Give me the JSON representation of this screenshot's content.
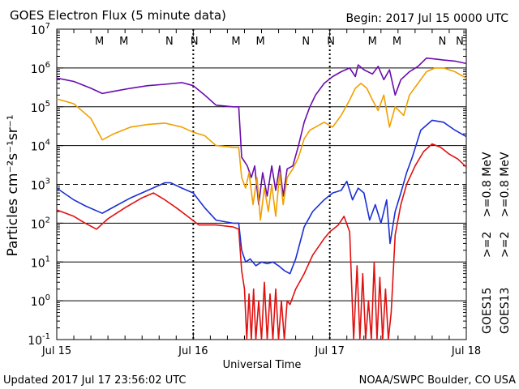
{
  "header": {
    "title": "GOES Electron Flux (5 minute data)",
    "begin": "Begin: 2017 Jul 15 0000 UTC"
  },
  "footer": {
    "updated": "Updated 2017 Jul 17 23:56:02 UTC",
    "credit": "NOAA/SWPC Boulder, CO USA"
  },
  "chart_data": {
    "type": "line",
    "title": "GOES Electron Flux (5 minute data)",
    "xlabel": "Universal Time",
    "ylabel": "Particles cm⁻²s⁻¹sr⁻¹",
    "y_scale": "log",
    "ylim": [
      0.1,
      10000000
    ],
    "y_ticks": [
      {
        "base": "10",
        "exp": "7",
        "value": 10000000
      },
      {
        "base": "10",
        "exp": "6",
        "value": 1000000
      },
      {
        "base": "10",
        "exp": "5",
        "value": 100000
      },
      {
        "base": "10",
        "exp": "4",
        "value": 10000
      },
      {
        "base": "10",
        "exp": "3",
        "value": 1000
      },
      {
        "base": "10",
        "exp": "2",
        "value": 100
      },
      {
        "base": "10",
        "exp": "1",
        "value": 10
      },
      {
        "base": "10",
        "exp": "0",
        "value": 1
      },
      {
        "base": "10",
        "exp": "-1",
        "value": 0.1
      }
    ],
    "x_unit": "hours since 2017 Jul 15 0000 UTC",
    "xlim": [
      0,
      72
    ],
    "x_ticks": [
      {
        "label": "Jul 15",
        "x": 0
      },
      {
        "label": "Jul 16",
        "x": 24
      },
      {
        "label": "Jul 17",
        "x": 48
      },
      {
        "label": "Jul 18",
        "x": 72
      }
    ],
    "dashed_level": 1000,
    "grid": true,
    "mn_markers": [
      {
        "label": "M",
        "x": 7.5,
        "color": "#e01010"
      },
      {
        "label": "M",
        "x": 11.8,
        "color": "#1a2fd6"
      },
      {
        "label": "N",
        "x": 19.8,
        "color": "#e01010"
      },
      {
        "label": "N",
        "x": 24.2,
        "color": "#1a2fd6"
      },
      {
        "label": "M",
        "x": 31.5,
        "color": "#e01010"
      },
      {
        "label": "M",
        "x": 35.8,
        "color": "#1a2fd6"
      },
      {
        "label": "N",
        "x": 43.8,
        "color": "#e01010"
      },
      {
        "label": "N",
        "x": 48.2,
        "color": "#1a2fd6"
      },
      {
        "label": "M",
        "x": 55.5,
        "color": "#e01010"
      },
      {
        "label": "M",
        "x": 59.8,
        "color": "#1a2fd6"
      },
      {
        "label": "N",
        "x": 67.8,
        "color": "#e01010"
      },
      {
        "label": "N",
        "x": 72.2,
        "color": "#1a2fd6"
      }
    ],
    "legend": {
      "placement": "right-vertical",
      "goes15": "GOES15",
      "goes13": "GOES13",
      "items": [
        {
          "text": ">=2",
          "color": "#1a2fd6"
        },
        {
          "text": ">=0.8 MeV",
          "color": "#6a0dad"
        },
        {
          "text": ">=2",
          "color": "#e01010"
        },
        {
          "text": ">=0.8 MeV",
          "color": "#f0a000"
        }
      ]
    },
    "series": [
      {
        "name": "GOES15 >=0.8 MeV",
        "color": "#6a0dad",
        "points": [
          [
            0,
            550000
          ],
          [
            3,
            450000
          ],
          [
            6,
            300000
          ],
          [
            8,
            220000
          ],
          [
            10,
            250000
          ],
          [
            13,
            300000
          ],
          [
            16,
            350000
          ],
          [
            19,
            380000
          ],
          [
            22,
            420000
          ],
          [
            24,
            350000
          ],
          [
            26,
            200000
          ],
          [
            28,
            110000
          ],
          [
            31,
            100000
          ],
          [
            32,
            100000
          ],
          [
            32.5,
            5000
          ],
          [
            33.5,
            3000
          ],
          [
            34.2,
            1500
          ],
          [
            34.8,
            3000
          ],
          [
            35.5,
            300
          ],
          [
            36.2,
            2000
          ],
          [
            37,
            500
          ],
          [
            37.8,
            3000
          ],
          [
            38.5,
            700
          ],
          [
            39.2,
            3000
          ],
          [
            39.8,
            500
          ],
          [
            40.5,
            2500
          ],
          [
            41.5,
            3000
          ],
          [
            42.5,
            10000
          ],
          [
            43.5,
            40000
          ],
          [
            44.5,
            100000
          ],
          [
            45.5,
            200000
          ],
          [
            47,
            400000
          ],
          [
            48.5,
            600000
          ],
          [
            50,
            800000
          ],
          [
            51.5,
            1000000
          ],
          [
            52.5,
            600000
          ],
          [
            53,
            1200000
          ],
          [
            54,
            900000
          ],
          [
            55.5,
            700000
          ],
          [
            56.5,
            1100000
          ],
          [
            57.5,
            500000
          ],
          [
            58.5,
            900000
          ],
          [
            59.5,
            200000
          ],
          [
            60.5,
            500000
          ],
          [
            62,
            800000
          ],
          [
            63.5,
            1100000
          ],
          [
            65,
            1800000
          ],
          [
            66.5,
            1700000
          ],
          [
            68,
            1600000
          ],
          [
            70,
            1500000
          ],
          [
            72,
            1300000
          ]
        ]
      },
      {
        "name": "GOES13 >=0.8 MeV",
        "color": "#f0a000",
        "points": [
          [
            0,
            160000
          ],
          [
            3,
            120000
          ],
          [
            6,
            50000
          ],
          [
            8,
            14000
          ],
          [
            10,
            20000
          ],
          [
            13,
            30000
          ],
          [
            16,
            35000
          ],
          [
            19,
            38000
          ],
          [
            22,
            30000
          ],
          [
            24,
            22000
          ],
          [
            26,
            18000
          ],
          [
            28,
            10000
          ],
          [
            31,
            9000
          ],
          [
            32,
            9000
          ],
          [
            32.5,
            1500
          ],
          [
            33.2,
            800
          ],
          [
            33.8,
            2000
          ],
          [
            34.5,
            300
          ],
          [
            35.2,
            1500
          ],
          [
            35.8,
            120
          ],
          [
            36.5,
            800
          ],
          [
            37.2,
            200
          ],
          [
            37.8,
            1000
          ],
          [
            38.5,
            150
          ],
          [
            39.2,
            2000
          ],
          [
            39.8,
            300
          ],
          [
            40.5,
            1500
          ],
          [
            41.5,
            2500
          ],
          [
            42.5,
            5000
          ],
          [
            43.5,
            15000
          ],
          [
            44.5,
            25000
          ],
          [
            45.5,
            30000
          ],
          [
            47,
            40000
          ],
          [
            48.5,
            30000
          ],
          [
            50,
            60000
          ],
          [
            51.5,
            150000
          ],
          [
            52.5,
            300000
          ],
          [
            53.5,
            400000
          ],
          [
            54.5,
            300000
          ],
          [
            55.5,
            150000
          ],
          [
            56.5,
            80000
          ],
          [
            57.5,
            200000
          ],
          [
            58.5,
            30000
          ],
          [
            59.5,
            100000
          ],
          [
            61,
            60000
          ],
          [
            62,
            200000
          ],
          [
            63.5,
            400000
          ],
          [
            65,
            800000
          ],
          [
            66.5,
            1000000
          ],
          [
            68,
            1000000
          ],
          [
            70,
            800000
          ],
          [
            72,
            550000
          ]
        ]
      },
      {
        "name": "GOES15 >=2",
        "color": "#1a2fd6",
        "points": [
          [
            0,
            800
          ],
          [
            3,
            400
          ],
          [
            5,
            280
          ],
          [
            8,
            180
          ],
          [
            10,
            260
          ],
          [
            13,
            450
          ],
          [
            16,
            700
          ],
          [
            19,
            1100
          ],
          [
            20,
            1100
          ],
          [
            22,
            800
          ],
          [
            24,
            600
          ],
          [
            26,
            250
          ],
          [
            28,
            120
          ],
          [
            31,
            100
          ],
          [
            32,
            100
          ],
          [
            32.5,
            20
          ],
          [
            33.2,
            10
          ],
          [
            34,
            12
          ],
          [
            35,
            8
          ],
          [
            36,
            10
          ],
          [
            37,
            9
          ],
          [
            38,
            10
          ],
          [
            39,
            8
          ],
          [
            40,
            6
          ],
          [
            41,
            5
          ],
          [
            42,
            12
          ],
          [
            43.5,
            80
          ],
          [
            45,
            200
          ],
          [
            47,
            400
          ],
          [
            48.5,
            600
          ],
          [
            50,
            700
          ],
          [
            51,
            1200
          ],
          [
            52,
            400
          ],
          [
            53,
            800
          ],
          [
            54,
            600
          ],
          [
            55,
            120
          ],
          [
            56,
            300
          ],
          [
            57,
            100
          ],
          [
            58,
            400
          ],
          [
            58.6,
            30
          ],
          [
            59.5,
            200
          ],
          [
            60.5,
            600
          ],
          [
            61.5,
            2000
          ],
          [
            62.5,
            5000
          ],
          [
            64,
            25000
          ],
          [
            66,
            45000
          ],
          [
            68,
            40000
          ],
          [
            70,
            25000
          ],
          [
            72,
            17000
          ]
        ]
      },
      {
        "name": "GOES13 >=2",
        "color": "#e01010",
        "points": [
          [
            0,
            220
          ],
          [
            3,
            150
          ],
          [
            5,
            100
          ],
          [
            7,
            70
          ],
          [
            9,
            130
          ],
          [
            12,
            250
          ],
          [
            15,
            450
          ],
          [
            17,
            600
          ],
          [
            19,
            400
          ],
          [
            21,
            250
          ],
          [
            23,
            150
          ],
          [
            25,
            90
          ],
          [
            28,
            90
          ],
          [
            31,
            80
          ],
          [
            32,
            70
          ],
          [
            32.5,
            6
          ],
          [
            33,
            2
          ],
          [
            33.4,
            0.1
          ],
          [
            33.8,
            1.5
          ],
          [
            34.2,
            0.1
          ],
          [
            34.6,
            2
          ],
          [
            35,
            0.1
          ],
          [
            35.5,
            1
          ],
          [
            36,
            0.1
          ],
          [
            36.5,
            3
          ],
          [
            37,
            0.1
          ],
          [
            37.5,
            1.5
          ],
          [
            38,
            0.1
          ],
          [
            38.5,
            2
          ],
          [
            39,
            0.1
          ],
          [
            39.5,
            1
          ],
          [
            40,
            0.1
          ],
          [
            40.5,
            1
          ],
          [
            41,
            0.8
          ],
          [
            42,
            2
          ],
          [
            43.5,
            5
          ],
          [
            45,
            15
          ],
          [
            47,
            40
          ],
          [
            48,
            60
          ],
          [
            49.5,
            90
          ],
          [
            50.5,
            150
          ],
          [
            51.5,
            60
          ],
          [
            52.2,
            0.1
          ],
          [
            52.8,
            8
          ],
          [
            53.3,
            0.1
          ],
          [
            53.8,
            5
          ],
          [
            54.3,
            0.1
          ],
          [
            54.8,
            1
          ],
          [
            55.3,
            0.1
          ],
          [
            55.8,
            10
          ],
          [
            56.3,
            0.1
          ],
          [
            56.8,
            4
          ],
          [
            57.3,
            0.1
          ],
          [
            57.8,
            2
          ],
          [
            58.3,
            0.1
          ],
          [
            58.8,
            0.5
          ],
          [
            59.5,
            50
          ],
          [
            60.5,
            300
          ],
          [
            61.5,
            1000
          ],
          [
            63,
            3000
          ],
          [
            64.5,
            7000
          ],
          [
            66,
            11000
          ],
          [
            67.5,
            9000
          ],
          [
            69,
            6000
          ],
          [
            70.5,
            4500
          ],
          [
            72,
            2800
          ]
        ]
      }
    ]
  }
}
